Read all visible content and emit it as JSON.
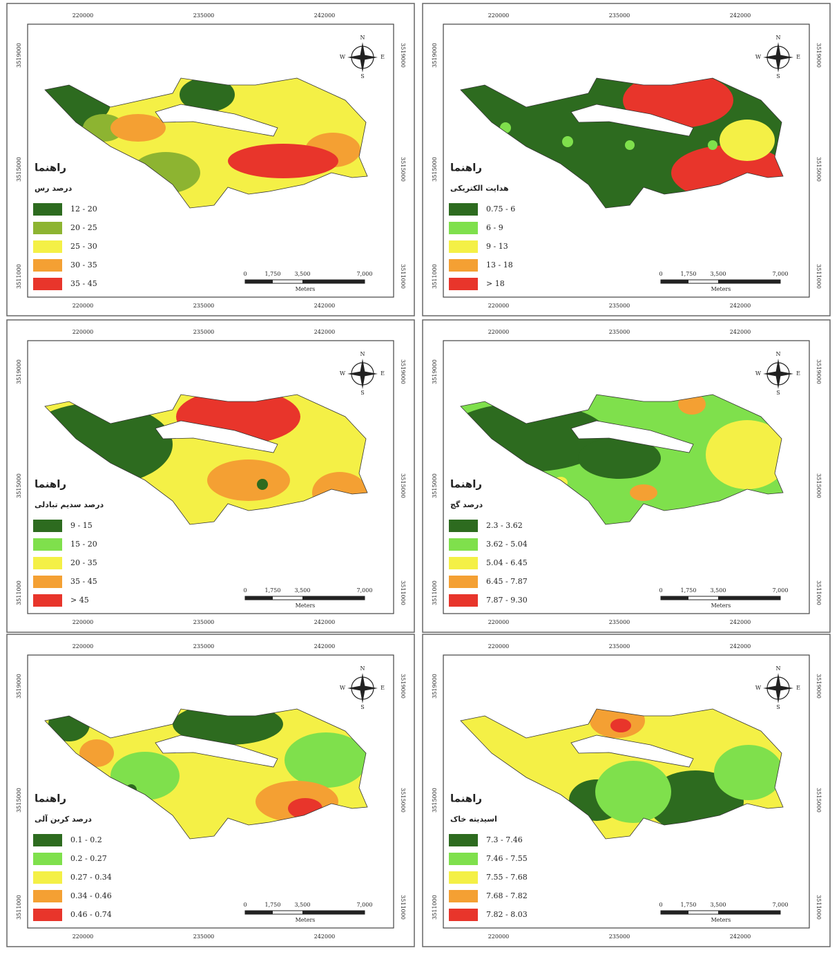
{
  "legend_title": "راهنما",
  "x_ticks": [
    "220000",
    "235000",
    "242000"
  ],
  "y_ticks": [
    "3519000",
    "3515000",
    "3511000"
  ],
  "scale_labels": [
    "0",
    "1,750",
    "3,500",
    "7,000"
  ],
  "scale_unit": "Meters",
  "compass": [
    "N",
    "E",
    "S",
    "W"
  ],
  "panels": [
    {
      "variable": "درصد رس",
      "classes": [
        {
          "label": "12 - 20",
          "color": "#2d6b1f"
        },
        {
          "label": "20 - 25",
          "color": "#8db431"
        },
        {
          "label": "25 - 30",
          "color": "#f4f046"
        },
        {
          "label": "30 - 35",
          "color": "#f4a033"
        },
        {
          "label": "35 - 45",
          "color": "#e8352b"
        }
      ]
    },
    {
      "variable": "هدایت الکتریکی",
      "classes": [
        {
          "label": "0.75 - 6",
          "color": "#2d6b1f"
        },
        {
          "label": "6 - 9",
          "color": "#7fe04c"
        },
        {
          "label": "9 - 13",
          "color": "#f4f046"
        },
        {
          "label": "13 - 18",
          "color": "#f4a033"
        },
        {
          "label": "> 18",
          "color": "#e8352b"
        }
      ]
    },
    {
      "variable": "درصد سدیم تبادلی",
      "classes": [
        {
          "label": "9 - 15",
          "color": "#2d6b1f"
        },
        {
          "label": "15 - 20",
          "color": "#7fe04c"
        },
        {
          "label": "20 - 35",
          "color": "#f4f046"
        },
        {
          "label": "35 - 45",
          "color": "#f4a033"
        },
        {
          "label": "> 45",
          "color": "#e8352b"
        }
      ]
    },
    {
      "variable": "درصد گچ",
      "classes": [
        {
          "label": "2.3 - 3.62",
          "color": "#2d6b1f"
        },
        {
          "label": "3.62 - 5.04",
          "color": "#7fe04c"
        },
        {
          "label": "5.04 - 6.45",
          "color": "#f4f046"
        },
        {
          "label": "6.45 - 7.87",
          "color": "#f4a033"
        },
        {
          "label": "7.87 - 9.30",
          "color": "#e8352b"
        }
      ]
    },
    {
      "variable": "درصد کربن آلی",
      "classes": [
        {
          "label": "0.1 - 0.2",
          "color": "#2d6b1f"
        },
        {
          "label": "0.2 - 0.27",
          "color": "#7fe04c"
        },
        {
          "label": "0.27 - 0.34",
          "color": "#f4f046"
        },
        {
          "label": "0.34 - 0.46",
          "color": "#f4a033"
        },
        {
          "label": "0.46 - 0.74",
          "color": "#e8352b"
        }
      ]
    },
    {
      "variable": "اسیدیته خاک",
      "classes": [
        {
          "label": "7.3 - 7.46",
          "color": "#2d6b1f"
        },
        {
          "label": "7.46 - 7.55",
          "color": "#7fe04c"
        },
        {
          "label": "7.55 - 7.68",
          "color": "#f4f046"
        },
        {
          "label": "7.68 - 7.82",
          "color": "#f4a033"
        },
        {
          "label": "7.82 - 8.03",
          "color": "#e8352b"
        }
      ]
    }
  ]
}
